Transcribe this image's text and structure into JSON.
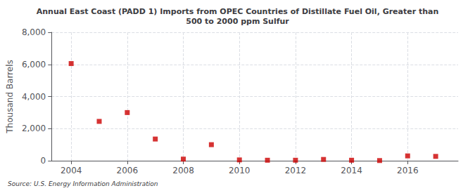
{
  "chart_data": {
    "type": "scatter",
    "title": "Annual East Coast (PADD 1) Imports from OPEC Countries of Distillate Fuel Oil, Greater than\n500 to 2000 ppm Sulfur",
    "ylabel": "Thousand Barrels",
    "source": "Source: U.S. Energy Information Administration",
    "x": [
      2004,
      2005,
      2006,
      2007,
      2008,
      2009,
      2010,
      2011,
      2012,
      2013,
      2014,
      2015,
      2016,
      2017
    ],
    "values": [
      6052,
      2450,
      3000,
      1350,
      100,
      1000,
      50,
      30,
      30,
      80,
      30,
      10,
      300,
      270
    ],
    "color": "#cc0000",
    "marker": "square",
    "xlim": [
      2003.3,
      2017.8
    ],
    "xticks": [
      2004,
      2006,
      2008,
      2010,
      2012,
      2014,
      2016
    ],
    "ylim": [
      0,
      8000
    ],
    "yticks": [
      0,
      {
        "value": 2000,
        "label": "2,000"
      },
      {
        "value": 4000,
        "label": "4,000"
      },
      {
        "value": 6000,
        "label": "6,000"
      },
      {
        "value": 8000,
        "label": "8,000"
      }
    ],
    "grid": true
  }
}
